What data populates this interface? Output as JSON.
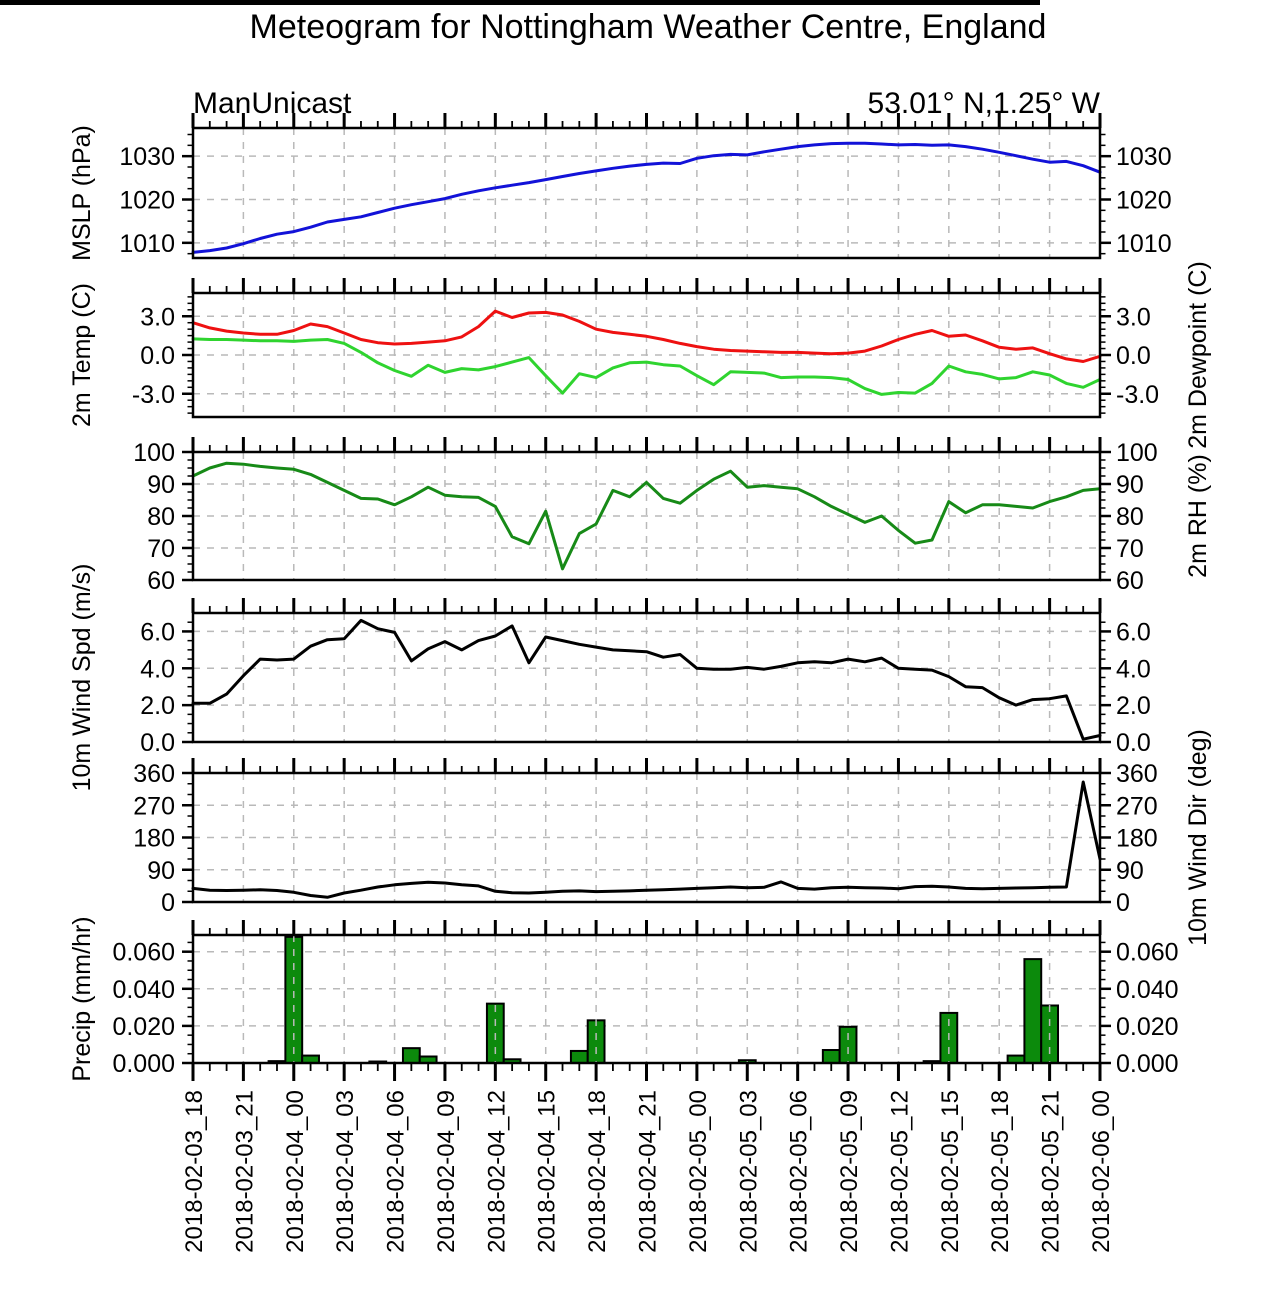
{
  "title": "Meteogram for Nottingham Weather Centre, England",
  "credit": "ManUnicast",
  "location": "53.01° N,1.25° W",
  "colors": {
    "mslp_line": "#1212d8",
    "temp_line": "#ee1111",
    "dewpoint_line": "#2fd42f",
    "rh_line": "#178a17",
    "wind_line": "#000000",
    "precip_fill": "#0c8a0c",
    "precip_stroke": "#000000",
    "grid": "#b9b9b9",
    "frame": "#000000",
    "background": "#ffffff"
  },
  "time": {
    "hours_total": 54,
    "tick_interval_hours": 3,
    "labels": [
      "2018-02-03_18",
      "2018-02-03_21",
      "2018-02-04_00",
      "2018-02-04_03",
      "2018-02-04_06",
      "2018-02-04_09",
      "2018-02-04_12",
      "2018-02-04_15",
      "2018-02-04_18",
      "2018-02-04_21",
      "2018-02-05_00",
      "2018-02-05_03",
      "2018-02-05_06",
      "2018-02-05_09",
      "2018-02-05_12",
      "2018-02-05_15",
      "2018-02-05_18",
      "2018-02-05_21",
      "2018-02-06_00"
    ]
  },
  "chart_data": [
    {
      "id": "mslp",
      "type": "line",
      "ylabel_left": "MSLP (hPa)",
      "ylabel_right": "",
      "ylim": [
        1006.5,
        1036.5
      ],
      "ticks": [
        1010,
        1020,
        1030
      ],
      "tick_labels": [
        "1010",
        "1020",
        "1030"
      ],
      "grid": [
        1010,
        1020,
        1030
      ],
      "minor_step": 2.5,
      "series": [
        {
          "name": "MSLP",
          "color_key": "mslp_line",
          "values": [
            1007.8,
            1008.2,
            1008.8,
            1009.8,
            1011.0,
            1012.0,
            1012.6,
            1013.6,
            1014.8,
            1015.4,
            1016.0,
            1017.0,
            1018.0,
            1018.8,
            1019.5,
            1020.2,
            1021.2,
            1022.0,
            1022.7,
            1023.3,
            1023.9,
            1024.6,
            1025.3,
            1026.0,
            1026.6,
            1027.2,
            1027.7,
            1028.1,
            1028.4,
            1028.3,
            1029.5,
            1030.1,
            1030.4,
            1030.3,
            1031.0,
            1031.6,
            1032.2,
            1032.6,
            1032.9,
            1033.0,
            1033.0,
            1032.8,
            1032.6,
            1032.7,
            1032.5,
            1032.6,
            1032.2,
            1031.6,
            1030.9,
            1030.1,
            1029.3,
            1028.6,
            1028.8,
            1027.8,
            1026.3
          ]
        }
      ]
    },
    {
      "id": "temp",
      "type": "line",
      "ylabel_left": "2m Temp (C)",
      "ylabel_right": "2m Dewpoint (C)",
      "ylim": [
        -4.8,
        4.8
      ],
      "ticks": [
        3,
        0,
        -3
      ],
      "tick_labels": [
        "3.0",
        "0.0",
        "-3.0"
      ],
      "grid": [
        3,
        0,
        -3
      ],
      "minor_step": 0.5,
      "series": [
        {
          "name": "2m Temperature",
          "color_key": "temp_line",
          "values": [
            2.5,
            2.1,
            1.85,
            1.7,
            1.6,
            1.6,
            1.9,
            2.4,
            2.2,
            1.7,
            1.2,
            0.95,
            0.85,
            0.9,
            1.0,
            1.1,
            1.4,
            2.2,
            3.4,
            2.9,
            3.25,
            3.3,
            3.1,
            2.6,
            2.0,
            1.75,
            1.6,
            1.45,
            1.2,
            0.9,
            0.65,
            0.45,
            0.35,
            0.3,
            0.25,
            0.2,
            0.2,
            0.15,
            0.1,
            0.15,
            0.3,
            0.7,
            1.2,
            1.6,
            1.9,
            1.45,
            1.55,
            1.1,
            0.6,
            0.45,
            0.55,
            0.1,
            -0.3,
            -0.5,
            -0.1
          ]
        },
        {
          "name": "2m Dewpoint",
          "color_key": "dewpoint_line",
          "values": [
            1.25,
            1.2,
            1.2,
            1.15,
            1.1,
            1.1,
            1.05,
            1.15,
            1.2,
            0.9,
            0.2,
            -0.6,
            -1.2,
            -1.65,
            -0.8,
            -1.35,
            -1.05,
            -1.15,
            -0.9,
            -0.55,
            -0.2,
            -1.6,
            -2.95,
            -1.45,
            -1.75,
            -1.0,
            -0.6,
            -0.55,
            -0.75,
            -0.85,
            -1.6,
            -2.3,
            -1.3,
            -1.35,
            -1.4,
            -1.75,
            -1.7,
            -1.7,
            -1.75,
            -1.9,
            -2.6,
            -3.05,
            -2.9,
            -2.95,
            -2.2,
            -0.85,
            -1.3,
            -1.5,
            -1.85,
            -1.75,
            -1.3,
            -1.55,
            -2.2,
            -2.5,
            -1.9
          ]
        }
      ]
    },
    {
      "id": "rh",
      "type": "line",
      "ylabel_left": "",
      "ylabel_right": "2m RH (%)",
      "ylim": [
        60,
        100
      ],
      "ticks": [
        100,
        90,
        80,
        70,
        60
      ],
      "tick_labels": [
        "100",
        "90",
        "80",
        "70",
        "60"
      ],
      "grid": [
        90,
        80,
        70
      ],
      "minor_step": 2.5,
      "series": [
        {
          "name": "2m Relative Humidity",
          "color_key": "rh_line",
          "values": [
            92.5,
            95,
            96.5,
            96.2,
            95.5,
            95,
            94.6,
            93,
            90.5,
            88,
            85.5,
            85.3,
            83.5,
            86,
            89,
            86.5,
            86,
            85.8,
            83,
            73.5,
            71.3,
            81.5,
            63.5,
            74.5,
            77.5,
            88,
            86,
            90.5,
            85.5,
            84,
            88,
            91.5,
            94,
            89,
            89.5,
            89,
            88.5,
            86,
            83,
            80.5,
            78,
            80,
            75.5,
            71.5,
            72.5,
            84.5,
            81,
            83.5,
            83.5,
            83,
            82.5,
            84.5,
            86,
            88,
            88.5
          ]
        }
      ]
    },
    {
      "id": "wspd",
      "type": "line",
      "ylabel_left": "10m Wind Spd (m/s)",
      "ylabel_right": "",
      "ylim": [
        0,
        7
      ],
      "ticks": [
        6,
        4,
        2,
        0
      ],
      "tick_labels": [
        "6.0",
        "4.0",
        "2.0",
        "0.0"
      ],
      "grid": [
        6,
        4,
        2
      ],
      "minor_step": 0.5,
      "series": [
        {
          "name": "10m Wind Speed",
          "color_key": "wind_line",
          "values": [
            2.1,
            2.1,
            2.6,
            3.6,
            4.5,
            4.45,
            4.5,
            5.2,
            5.55,
            5.6,
            6.6,
            6.15,
            5.95,
            4.4,
            5.05,
            5.45,
            5.0,
            5.5,
            5.75,
            6.3,
            4.3,
            5.7,
            5.5,
            5.3,
            5.15,
            5.0,
            4.95,
            4.9,
            4.6,
            4.75,
            4.0,
            3.95,
            3.95,
            4.05,
            3.95,
            4.1,
            4.3,
            4.35,
            4.3,
            4.5,
            4.35,
            4.55,
            4.0,
            3.95,
            3.9,
            3.55,
            3.0,
            2.95,
            2.4,
            2.0,
            2.3,
            2.35,
            2.5,
            0.15,
            0.35
          ]
        }
      ]
    },
    {
      "id": "wdir",
      "type": "line",
      "ylabel_left": "",
      "ylabel_right": "10m Wind Dir (deg)",
      "ylim": [
        0,
        360
      ],
      "ticks": [
        360,
        270,
        180,
        90,
        0
      ],
      "tick_labels": [
        "360",
        "270",
        "180",
        "90",
        "0"
      ],
      "grid": [
        270,
        180,
        90
      ],
      "minor_step": 30,
      "series": [
        {
          "name": "10m Wind Direction",
          "color_key": "wind_line",
          "values": [
            38,
            33,
            32,
            33,
            34,
            32,
            27,
            18,
            13,
            25,
            33,
            42,
            48,
            52,
            55,
            53,
            48,
            45,
            30,
            26,
            25,
            27,
            30,
            31,
            29,
            30,
            31,
            33,
            34,
            36,
            38,
            40,
            42,
            40,
            41,
            56,
            38,
            36,
            40,
            41,
            40,
            39,
            37,
            43,
            44,
            42,
            38,
            37,
            38,
            39,
            40,
            41,
            42,
            335,
            120
          ]
        }
      ]
    },
    {
      "id": "precip",
      "type": "bar",
      "ylabel_left": "Precip (mm/hr)",
      "ylabel_right": "",
      "ylim": [
        0,
        0.069
      ],
      "ticks": [
        0.06,
        0.04,
        0.02,
        0
      ],
      "tick_labels": [
        "0.060",
        "0.040",
        "0.020",
        "0.000"
      ],
      "grid": [
        0.06,
        0.04,
        0.02
      ],
      "minor_step": 0.005,
      "series": [
        {
          "name": "Precipitation",
          "color_key": "precip_fill",
          "values": [
            0,
            0,
            0,
            0,
            0,
            0.001,
            0.068,
            0.004,
            0,
            0,
            0,
            0.0008,
            0,
            0.008,
            0.0035,
            0,
            0,
            0,
            0.032,
            0.002,
            0,
            0,
            0,
            0.0065,
            0.023,
            0,
            0,
            0,
            0,
            0,
            0,
            0,
            0,
            0.0015,
            0,
            0,
            0,
            0,
            0.007,
            0.0195,
            0,
            0,
            0,
            0,
            0.001,
            0.027,
            0,
            0,
            0,
            0.004,
            0.056,
            0.031,
            0,
            0,
            0
          ]
        }
      ]
    }
  ]
}
